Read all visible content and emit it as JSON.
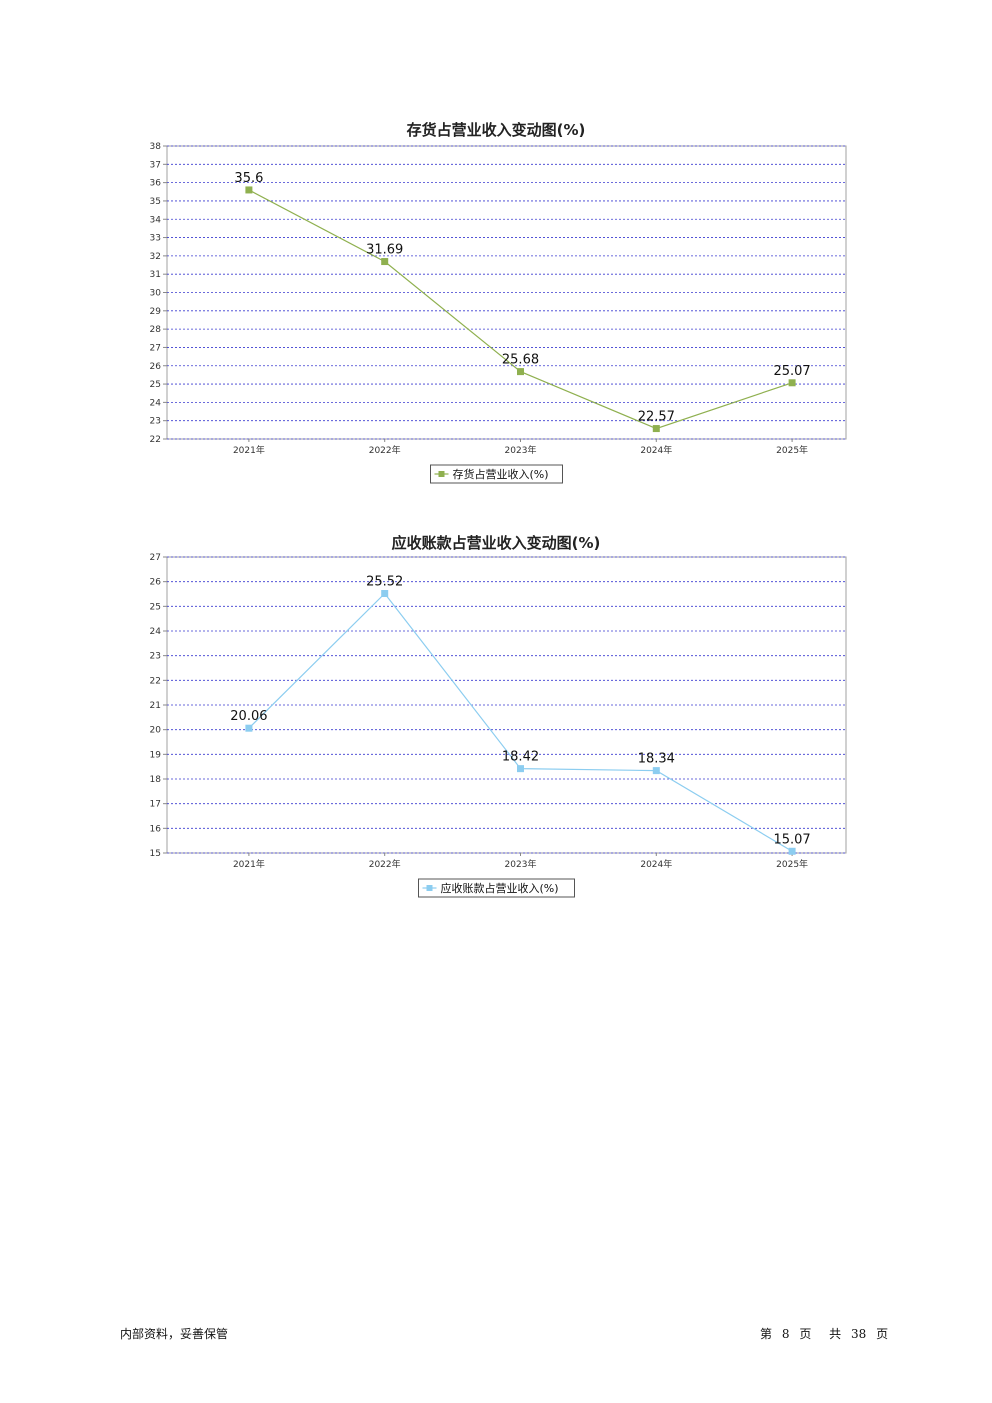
{
  "chart_data": [
    {
      "type": "line",
      "title": "存货占营业收入变动图(%)",
      "categories": [
        "2021年",
        "2022年",
        "2023年",
        "2024年",
        "2025年"
      ],
      "series": [
        {
          "name": "存货占营业收入(%)",
          "values": [
            35.6,
            31.69,
            25.68,
            22.57,
            25.07
          ],
          "color": "#8fb04f"
        }
      ],
      "ylim": [
        22,
        38
      ],
      "yticks": [
        22,
        23,
        24,
        25,
        26,
        27,
        28,
        29,
        30,
        31,
        32,
        33,
        34,
        35,
        36,
        37,
        38
      ],
      "grid": true,
      "legend": "bottom-center"
    },
    {
      "type": "line",
      "title": "应收账款占营业收入变动图(%)",
      "categories": [
        "2021年",
        "2022年",
        "2023年",
        "2024年",
        "2025年"
      ],
      "series": [
        {
          "name": "应收账款占营业收入(%)",
          "values": [
            20.06,
            25.52,
            18.42,
            18.34,
            15.07
          ],
          "color": "#8ccdf0"
        }
      ],
      "ylim": [
        15,
        27
      ],
      "yticks": [
        15,
        16,
        17,
        18,
        19,
        20,
        21,
        22,
        23,
        24,
        25,
        26,
        27
      ],
      "grid": true,
      "legend": "bottom-center"
    }
  ],
  "footer": {
    "left": "内部资料，妥善保管",
    "page_label_pre": "第",
    "page_num": "8",
    "page_label_mid": "页",
    "total_label_pre": "共",
    "total_num": "38",
    "total_label_post": "页"
  }
}
